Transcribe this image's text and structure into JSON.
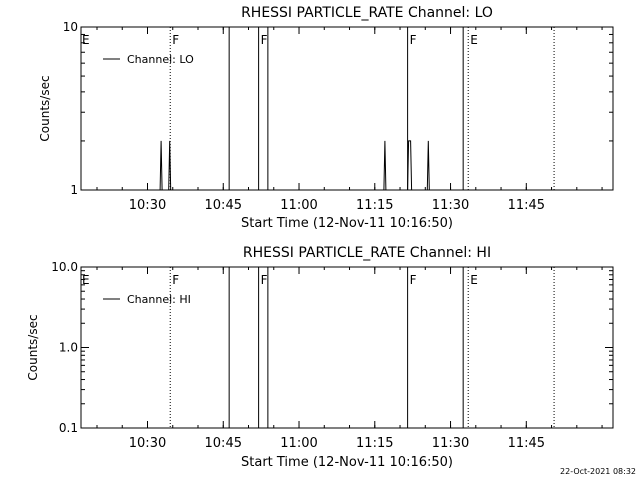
{
  "footer_timestamp": "22-Oct-2021 08:32",
  "chart_data": [
    {
      "type": "line",
      "title": "RHESSI PARTICLE_RATE Channel: LO",
      "xlabel": "Start Time (12-Nov-11 10:16:50)",
      "ylabel": "Counts/sec",
      "yscale": "log",
      "ylim": [
        1,
        10
      ],
      "xlim": [
        "10:16:50",
        "12:02:10"
      ],
      "x_ticks": [
        "10:30",
        "10:45",
        "11:00",
        "11:15",
        "11:30",
        "11:45"
      ],
      "y_ticks": [
        "1",
        "10"
      ],
      "grid": false,
      "legend": {
        "position": "top-left",
        "entries": [
          "Channel: LO"
        ]
      },
      "series": [
        {
          "name": "Channel: LO",
          "points": [
            [
              "10:16:50",
              1
            ],
            [
              "10:32:30",
              1
            ],
            [
              "10:32:42",
              2
            ],
            [
              "10:32:54",
              1
            ],
            [
              "10:34:12",
              1
            ],
            [
              "10:34:24",
              2
            ],
            [
              "10:34:36",
              1
            ],
            [
              "11:16:48",
              1
            ],
            [
              "11:17:00",
              2
            ],
            [
              "11:17:12",
              1
            ],
            [
              "11:21:30",
              1
            ],
            [
              "11:21:42",
              2
            ],
            [
              "11:22:06",
              2
            ],
            [
              "11:22:18",
              1
            ],
            [
              "11:25:24",
              1
            ],
            [
              "11:25:36",
              2
            ],
            [
              "11:25:48",
              1
            ],
            [
              "12:02:10",
              1
            ]
          ]
        }
      ],
      "markers": [
        {
          "time": "10:16:50",
          "label": "E",
          "style": "none"
        },
        {
          "time": "10:34:30",
          "label": "F",
          "style": "dotted"
        },
        {
          "time": "10:46:10",
          "label": "",
          "style": "solid"
        },
        {
          "time": "10:52:00",
          "label": "F",
          "style": "solid"
        },
        {
          "time": "10:53:50",
          "label": "",
          "style": "solid"
        },
        {
          "time": "11:21:30",
          "label": "F",
          "style": "solid"
        },
        {
          "time": "11:32:30",
          "label": "",
          "style": "solid"
        },
        {
          "time": "11:33:30",
          "label": "E",
          "style": "dotted"
        },
        {
          "time": "11:50:30",
          "label": "",
          "style": "dotted"
        }
      ]
    },
    {
      "type": "line",
      "title": "RHESSI PARTICLE_RATE Channel: HI",
      "xlabel": "Start Time (12-Nov-11 10:16:50)",
      "ylabel": "Counts/sec",
      "yscale": "log",
      "ylim": [
        0.1,
        10
      ],
      "xlim": [
        "10:16:50",
        "12:02:10"
      ],
      "x_ticks": [
        "10:30",
        "10:45",
        "11:00",
        "11:15",
        "11:30",
        "11:45"
      ],
      "y_ticks": [
        "0.1",
        "1.0",
        "10.0"
      ],
      "grid": false,
      "legend": {
        "position": "top-left",
        "entries": [
          "Channel: HI"
        ]
      },
      "series": [
        {
          "name": "Channel: HI",
          "points": []
        }
      ],
      "markers": [
        {
          "time": "10:16:50",
          "label": "E",
          "style": "none"
        },
        {
          "time": "10:34:30",
          "label": "F",
          "style": "dotted"
        },
        {
          "time": "10:46:10",
          "label": "",
          "style": "solid"
        },
        {
          "time": "10:52:00",
          "label": "F",
          "style": "solid"
        },
        {
          "time": "10:53:50",
          "label": "",
          "style": "solid"
        },
        {
          "time": "11:21:30",
          "label": "F",
          "style": "solid"
        },
        {
          "time": "11:32:30",
          "label": "",
          "style": "solid"
        },
        {
          "time": "11:33:30",
          "label": "E",
          "style": "dotted"
        },
        {
          "time": "11:50:30",
          "label": "",
          "style": "dotted"
        }
      ]
    }
  ]
}
